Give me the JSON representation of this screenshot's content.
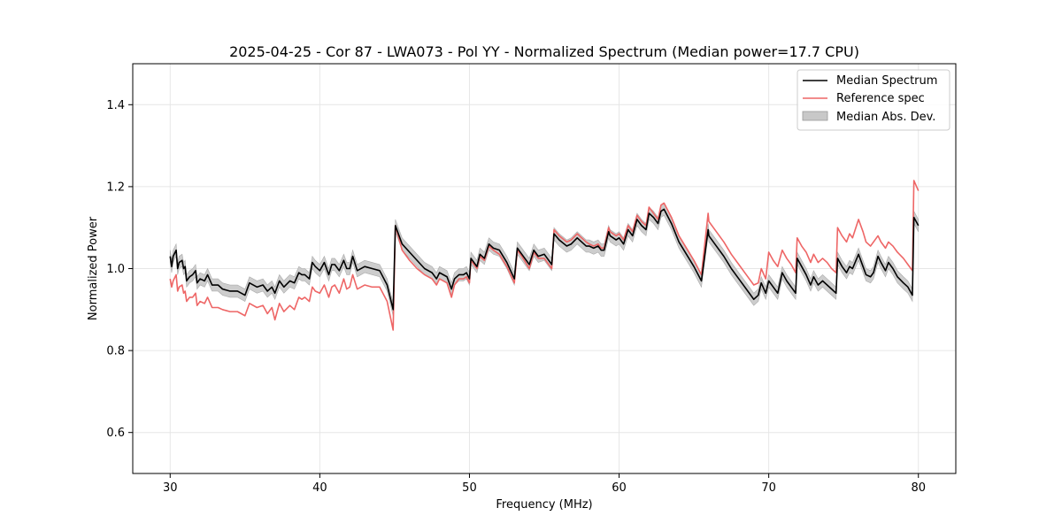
{
  "chart_data": {
    "type": "line",
    "title": "2025-04-25 - Cor 87 - LWA073 - Pol YY - Normalized Spectrum (Median power=17.7 CPU)",
    "xlabel": "Frequency (MHz)",
    "ylabel": "Normalized Power",
    "xlim": [
      27.5,
      82.5
    ],
    "ylim": [
      0.5,
      1.5
    ],
    "x_ticks": [
      30,
      40,
      50,
      60,
      70,
      80
    ],
    "y_ticks": [
      0.6,
      0.8,
      1.0,
      1.2,
      1.4
    ],
    "x_tick_labels": [
      "30",
      "40",
      "50",
      "60",
      "70",
      "80"
    ],
    "y_tick_labels": [
      "0.6",
      "0.8",
      "1.0",
      "1.2",
      "1.4"
    ],
    "grid": true,
    "legend_position": "top-right",
    "series": [
      {
        "name": "Median Spectrum",
        "color": "#000000",
        "x": [
          30.0,
          30.1,
          30.2,
          30.4,
          30.5,
          30.6,
          30.8,
          30.9,
          31.0,
          31.1,
          31.3,
          31.5,
          31.7,
          31.8,
          32.0,
          32.3,
          32.5,
          32.8,
          33.2,
          33.5,
          34.0,
          34.5,
          35.0,
          35.3,
          35.8,
          36.2,
          36.5,
          36.8,
          37.0,
          37.3,
          37.6,
          38.0,
          38.3,
          38.6,
          38.8,
          39.0,
          39.3,
          39.5,
          39.7,
          40.0,
          40.3,
          40.6,
          40.8,
          41.0,
          41.3,
          41.6,
          41.8,
          42.0,
          42.2,
          42.5,
          43.0,
          43.5,
          44.0,
          44.5,
          44.9,
          45.05,
          45.5,
          46.0,
          46.5,
          47.0,
          47.5,
          47.8,
          48.0,
          48.5,
          48.8,
          49.0,
          49.3,
          49.6,
          49.8,
          50.0,
          50.1,
          50.5,
          50.7,
          51.0,
          51.3,
          51.6,
          52.0,
          52.5,
          53.0,
          53.2,
          53.5,
          54.0,
          54.3,
          54.6,
          55.0,
          55.5,
          55.65,
          56.0,
          56.5,
          56.8,
          57.2,
          57.5,
          57.8,
          58.0,
          58.3,
          58.6,
          58.8,
          59.0,
          59.3,
          59.4,
          59.8,
          60.0,
          60.3,
          60.6,
          60.9,
          61.2,
          61.5,
          61.8,
          62.0,
          62.3,
          62.6,
          62.8,
          63.0,
          63.5,
          64.0,
          64.5,
          65.0,
          65.5,
          65.95,
          66.0,
          66.5,
          67.0,
          67.5,
          68.0,
          68.5,
          69.0,
          69.3,
          69.5,
          69.8,
          70.0,
          70.3,
          70.6,
          70.9,
          71.2,
          71.5,
          71.8,
          71.9,
          72.2,
          72.5,
          72.8,
          73.0,
          73.3,
          73.6,
          73.9,
          74.2,
          74.5,
          74.6,
          74.9,
          75.2,
          75.4,
          75.6,
          76.0,
          76.3,
          76.5,
          76.8,
          77.0,
          77.3,
          77.5,
          77.8,
          78.0,
          78.3,
          78.6,
          79.0,
          79.3,
          79.6,
          79.7,
          80.0
        ],
        "values": [
          1.03,
          1.005,
          1.03,
          1.045,
          1.0,
          1.015,
          1.02,
          1.0,
          1.005,
          0.97,
          0.98,
          0.985,
          0.995,
          0.965,
          0.975,
          0.97,
          0.985,
          0.96,
          0.96,
          0.95,
          0.945,
          0.945,
          0.935,
          0.965,
          0.955,
          0.96,
          0.945,
          0.955,
          0.94,
          0.97,
          0.955,
          0.97,
          0.965,
          0.99,
          0.985,
          0.985,
          0.975,
          1.015,
          1.005,
          0.995,
          1.015,
          0.985,
          1.01,
          1.01,
          0.995,
          1.02,
          1.0,
          1.0,
          1.03,
          0.995,
          1.005,
          1.0,
          0.995,
          0.96,
          0.9,
          1.105,
          1.06,
          1.04,
          1.02,
          1.0,
          0.99,
          0.975,
          0.99,
          0.98,
          0.95,
          0.975,
          0.985,
          0.985,
          0.99,
          0.975,
          1.025,
          1.005,
          1.035,
          1.025,
          1.06,
          1.05,
          1.045,
          1.015,
          0.975,
          1.05,
          1.035,
          1.01,
          1.045,
          1.03,
          1.035,
          1.01,
          1.085,
          1.07,
          1.055,
          1.06,
          1.075,
          1.065,
          1.055,
          1.055,
          1.05,
          1.055,
          1.045,
          1.045,
          1.09,
          1.08,
          1.07,
          1.075,
          1.06,
          1.095,
          1.08,
          1.12,
          1.105,
          1.095,
          1.135,
          1.125,
          1.11,
          1.14,
          1.145,
          1.11,
          1.065,
          1.035,
          1.005,
          0.97,
          1.095,
          1.08,
          1.055,
          1.03,
          1.0,
          0.975,
          0.95,
          0.925,
          0.935,
          0.965,
          0.94,
          0.97,
          0.955,
          0.94,
          0.99,
          0.97,
          0.955,
          0.94,
          1.025,
          1.005,
          0.985,
          0.96,
          0.98,
          0.96,
          0.97,
          0.96,
          0.95,
          0.94,
          1.025,
          1.005,
          0.99,
          1.005,
          1.0,
          1.035,
          1.005,
          0.985,
          0.98,
          0.99,
          1.03,
          1.015,
          0.995,
          1.015,
          1.0,
          0.98,
          0.965,
          0.955,
          0.935,
          1.125,
          1.105
        ]
      },
      {
        "name": "Reference spec",
        "color": "#ee6666",
        "x": [
          30.0,
          30.1,
          30.2,
          30.4,
          30.5,
          30.6,
          30.8,
          30.9,
          31.0,
          31.1,
          31.3,
          31.5,
          31.7,
          31.8,
          32.0,
          32.3,
          32.5,
          32.8,
          33.2,
          33.5,
          34.0,
          34.5,
          35.0,
          35.3,
          35.8,
          36.2,
          36.5,
          36.8,
          37.0,
          37.3,
          37.6,
          38.0,
          38.3,
          38.6,
          38.8,
          39.0,
          39.3,
          39.5,
          39.7,
          40.0,
          40.3,
          40.6,
          40.8,
          41.0,
          41.3,
          41.6,
          41.8,
          42.0,
          42.2,
          42.5,
          43.0,
          43.5,
          44.0,
          44.5,
          44.9,
          45.05,
          45.5,
          46.0,
          46.5,
          47.0,
          47.5,
          47.8,
          48.0,
          48.5,
          48.8,
          49.0,
          49.3,
          49.6,
          49.8,
          50.0,
          50.1,
          50.5,
          50.7,
          51.0,
          51.3,
          51.6,
          52.0,
          52.5,
          53.0,
          53.2,
          53.5,
          54.0,
          54.3,
          54.6,
          55.0,
          55.5,
          55.65,
          56.0,
          56.5,
          56.8,
          57.2,
          57.5,
          57.8,
          58.0,
          58.3,
          58.6,
          58.8,
          59.0,
          59.3,
          59.4,
          59.8,
          60.0,
          60.3,
          60.6,
          60.9,
          61.2,
          61.5,
          61.8,
          62.0,
          62.3,
          62.6,
          62.8,
          63.0,
          63.5,
          64.0,
          64.5,
          65.0,
          65.5,
          65.95,
          66.0,
          66.5,
          67.0,
          67.5,
          68.0,
          68.5,
          69.0,
          69.3,
          69.5,
          69.8,
          70.0,
          70.3,
          70.6,
          70.9,
          71.2,
          71.5,
          71.8,
          71.9,
          72.2,
          72.5,
          72.8,
          73.0,
          73.3,
          73.6,
          73.9,
          74.2,
          74.5,
          74.6,
          74.9,
          75.2,
          75.4,
          75.6,
          76.0,
          76.3,
          76.5,
          76.8,
          77.0,
          77.3,
          77.5,
          77.8,
          78.0,
          78.3,
          78.6,
          79.0,
          79.3,
          79.6,
          79.7,
          80.0
        ],
        "values": [
          0.975,
          0.955,
          0.97,
          0.985,
          0.945,
          0.955,
          0.96,
          0.94,
          0.945,
          0.92,
          0.93,
          0.93,
          0.94,
          0.91,
          0.92,
          0.915,
          0.93,
          0.905,
          0.905,
          0.9,
          0.895,
          0.895,
          0.885,
          0.915,
          0.905,
          0.91,
          0.89,
          0.905,
          0.875,
          0.915,
          0.895,
          0.91,
          0.9,
          0.93,
          0.925,
          0.93,
          0.92,
          0.955,
          0.945,
          0.94,
          0.96,
          0.93,
          0.955,
          0.96,
          0.94,
          0.975,
          0.95,
          0.955,
          0.985,
          0.95,
          0.96,
          0.955,
          0.955,
          0.92,
          0.85,
          1.105,
          1.045,
          1.02,
          1.0,
          0.985,
          0.975,
          0.96,
          0.975,
          0.965,
          0.93,
          0.96,
          0.975,
          0.975,
          0.98,
          0.965,
          1.02,
          1.0,
          1.03,
          1.02,
          1.055,
          1.045,
          1.035,
          1.005,
          0.965,
          1.045,
          1.03,
          1.0,
          1.04,
          1.025,
          1.025,
          1.0,
          1.095,
          1.08,
          1.065,
          1.07,
          1.085,
          1.075,
          1.065,
          1.06,
          1.055,
          1.06,
          1.05,
          1.05,
          1.1,
          1.09,
          1.08,
          1.085,
          1.07,
          1.105,
          1.09,
          1.13,
          1.115,
          1.105,
          1.15,
          1.135,
          1.12,
          1.155,
          1.16,
          1.125,
          1.08,
          1.05,
          1.02,
          0.985,
          1.135,
          1.115,
          1.09,
          1.065,
          1.035,
          1.01,
          0.985,
          0.96,
          0.965,
          1.0,
          0.975,
          1.04,
          1.02,
          1.005,
          1.045,
          1.025,
          1.01,
          0.99,
          1.075,
          1.055,
          1.04,
          1.015,
          1.035,
          1.015,
          1.025,
          1.015,
          1.0,
          0.99,
          1.1,
          1.08,
          1.065,
          1.085,
          1.075,
          1.12,
          1.09,
          1.065,
          1.055,
          1.065,
          1.08,
          1.065,
          1.05,
          1.065,
          1.055,
          1.04,
          1.025,
          1.01,
          0.995,
          1.215,
          1.19
        ]
      }
    ],
    "band": {
      "name": "Median Abs. Dev.",
      "color": "#c8c8c8",
      "half_width": 0.015
    }
  }
}
